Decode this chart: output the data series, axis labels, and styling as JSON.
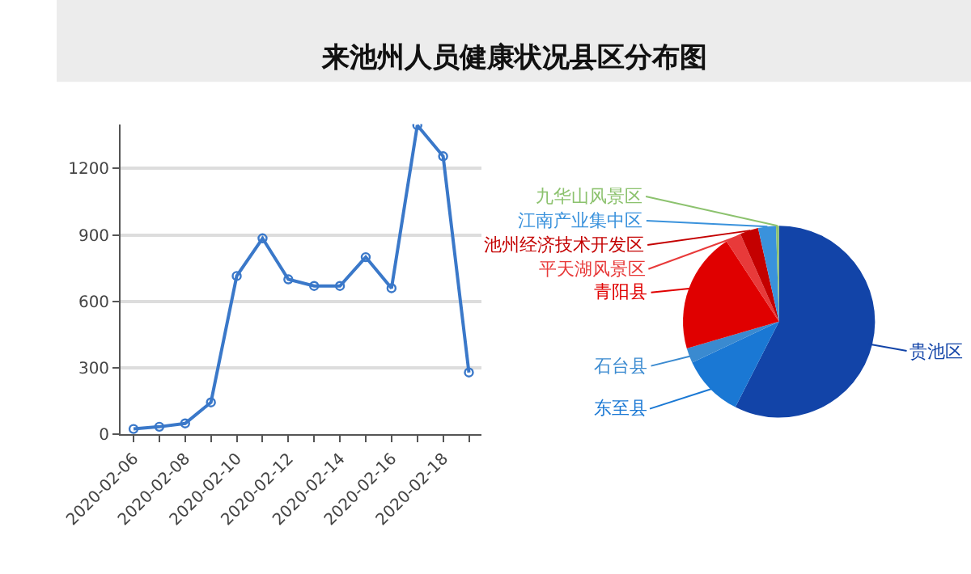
{
  "chart_data": [
    {
      "type": "line",
      "title": "来池州人员健康状况县区分布图",
      "x": [
        "2020-02-06",
        "2020-02-07",
        "2020-02-08",
        "2020-02-09",
        "2020-02-10",
        "2020-02-11",
        "2020-02-12",
        "2020-02-13",
        "2020-02-14",
        "2020-02-15",
        "2020-02-16",
        "2020-02-17",
        "2020-02-18",
        "2020-02-19"
      ],
      "series": [
        {
          "color": "#3a78c9",
          "values": [
            25,
            35,
            50,
            145,
            715,
            885,
            700,
            670,
            670,
            800,
            660,
            1395,
            1255,
            280
          ]
        }
      ],
      "xlim": [
        "2020-02-05T12:00",
        "2020-02-19T12:00"
      ],
      "xticks": [
        {
          "value": "2020-02-06",
          "label": "2020-02-06"
        },
        {
          "value": "2020-02-07",
          "label": null
        },
        {
          "value": "2020-02-08",
          "label": "2020-02-08"
        },
        {
          "value": "2020-02-09",
          "label": null
        },
        {
          "value": "2020-02-10",
          "label": "2020-02-10"
        },
        {
          "value": "2020-02-11",
          "label": null
        },
        {
          "value": "2020-02-12",
          "label": "2020-02-12"
        },
        {
          "value": "2020-02-13",
          "label": null
        },
        {
          "value": "2020-02-14",
          "label": "2020-02-14"
        },
        {
          "value": "2020-02-15",
          "label": null
        },
        {
          "value": "2020-02-16",
          "label": "2020-02-16"
        },
        {
          "value": "2020-02-17",
          "label": null
        },
        {
          "value": "2020-02-18",
          "label": "2020-02-18"
        },
        {
          "value": "2020-02-19",
          "label": null
        }
      ],
      "ylim": [
        0,
        1400
      ],
      "yticks": [
        0,
        300,
        600,
        900,
        1200
      ],
      "grid": "y",
      "marker": "circle",
      "line_style": "solid"
    },
    {
      "type": "pie",
      "categories": [
        "贵池区",
        "东至县",
        "石台县",
        "青阳县",
        "平天湖风景区",
        "池州经济技术开发区",
        "江南产业集中区",
        "九华山风景区"
      ],
      "values": [
        57.5,
        10.5,
        2.5,
        20.3,
        2.6,
        3.1,
        3.0,
        0.5
      ],
      "colors": [
        "#1244a8",
        "#1a78d4",
        "#3a8ad0",
        "#e00000",
        "#e83a3a",
        "#c40000",
        "#3a92dc",
        "#8cc26e"
      ]
    }
  ]
}
